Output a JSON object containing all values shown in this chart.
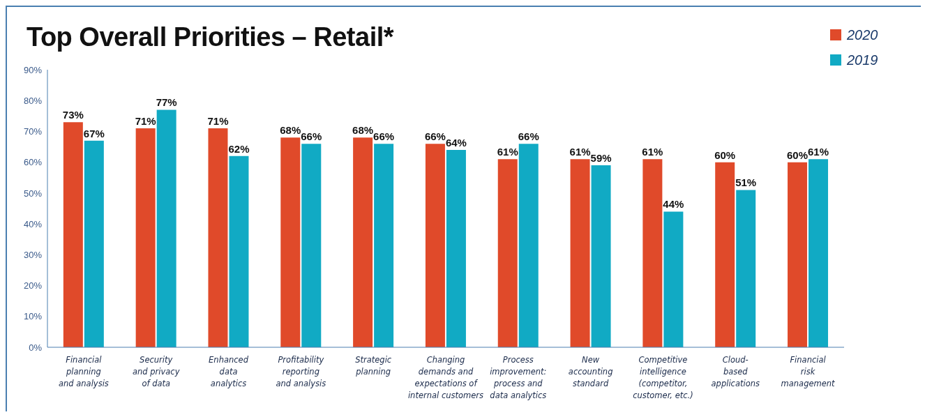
{
  "chart_data": {
    "type": "bar",
    "title": "Top Overall Priorities – Retail*",
    "categories": [
      "Financial\nplanning\nand analysis",
      "Security\nand privacy\nof data",
      "Enhanced\ndata\nanalytics",
      "Profitability\nreporting\nand analysis",
      "Strategic\nplanning",
      "Changing\ndemands and\nexpectations of\ninternal customers",
      "Process\nimprovement:\nprocess and\ndata analytics",
      "New\naccounting\nstandard",
      "Competitive\nintelligence\n(competitor,\ncustomer, etc.)",
      "Cloud-\nbased\napplications",
      "Financial\nrisk\nmanagement"
    ],
    "series": [
      {
        "name": "2020",
        "color": "#e04a2a",
        "values": [
          73,
          71,
          71,
          68,
          68,
          66,
          61,
          61,
          61,
          60,
          60
        ],
        "value_labels": [
          "73%",
          "71%",
          "71%",
          "68%",
          "68%",
          "66%",
          "61%",
          "61%",
          "61%",
          "60%",
          "60%"
        ]
      },
      {
        "name": "2019",
        "color": "#11aac4",
        "values": [
          67,
          77,
          62,
          66,
          66,
          64,
          66,
          59,
          44,
          51,
          61
        ],
        "value_labels": [
          "67%",
          "77%",
          "62%",
          "66%",
          "66%",
          "64%",
          "66%",
          "59%",
          "44%",
          "51%",
          "61%"
        ]
      }
    ],
    "ylim": [
      0,
      90
    ],
    "yticks": [
      {
        "value": 0,
        "label": "0%"
      },
      {
        "value": 10,
        "label": "10%"
      },
      {
        "value": 20,
        "label": "20%"
      },
      {
        "value": 30,
        "label": "30%"
      },
      {
        "value": 40,
        "label": "40%"
      },
      {
        "value": 50,
        "label": "50%"
      },
      {
        "value": 60,
        "label": "60%"
      },
      {
        "value": 70,
        "label": "70%"
      },
      {
        "value": 80,
        "label": "80%"
      },
      {
        "value": 90,
        "label": "90%"
      }
    ],
    "grid": false,
    "legend": "top right"
  }
}
